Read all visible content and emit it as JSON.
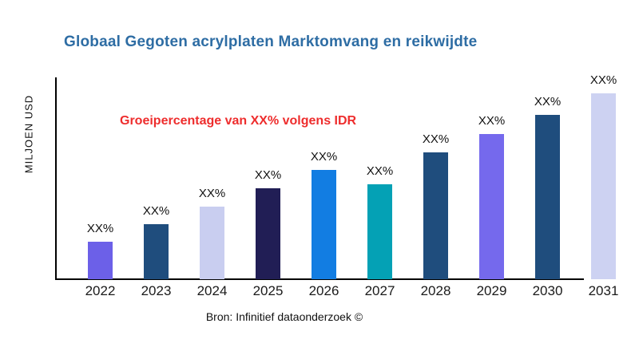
{
  "chart_data": {
    "type": "bar",
    "title": "Globaal Gegoten acrylplaten Marktomvang en reikwijdte",
    "ylabel": "MILJOEN USD",
    "xlabel": "",
    "annotation": "Groeipercentage van XX% volgens IDR",
    "source": "Bron: Infinitief dataonderzoek ©",
    "categories": [
      "2022",
      "2023",
      "2024",
      "2025",
      "2026",
      "2027",
      "2028",
      "2029",
      "2030",
      "2031"
    ],
    "values": [
      47,
      69,
      91,
      114,
      137,
      119,
      159,
      182,
      206,
      233
    ],
    "values_note": "relative bar heights; numeric y values masked as XX% on chart",
    "bar_labels": [
      "XX%",
      "XX%",
      "XX%",
      "XX%",
      "XX%",
      "XX%",
      "XX%",
      "XX%",
      "XX%",
      "XX%"
    ],
    "bar_colors": [
      "#6c60e8",
      "#1f4d7d",
      "#c9cef0",
      "#211e55",
      "#127de2",
      "#04a1b5",
      "#1f4d7d",
      "#7569ed",
      "#1f4d7d",
      "#cdd2f2"
    ],
    "grid": false,
    "legend": false,
    "ylim_note": "no numeric axis ticks shown"
  },
  "colors": {
    "title": "#2e6da4",
    "annotation": "#ee2d2d",
    "axis": "#000000",
    "text": "#111111",
    "background": "#ffffff"
  }
}
